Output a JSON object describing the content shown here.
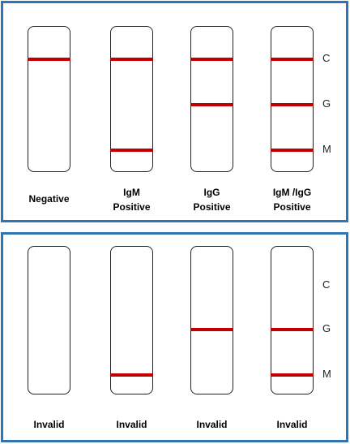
{
  "colors": {
    "border": "#2e75b6",
    "band": "#c00000"
  },
  "line_markers": [
    "C",
    "G",
    "M"
  ],
  "top_panel": {
    "strips": [
      {
        "caption_lines": [
          "Negative"
        ],
        "bands": [
          "C"
        ]
      },
      {
        "caption_lines": [
          "IgM",
          "Positive"
        ],
        "bands": [
          "C",
          "M"
        ]
      },
      {
        "caption_lines": [
          "IgG",
          "Positive"
        ],
        "bands": [
          "C",
          "G"
        ]
      },
      {
        "caption_lines": [
          "IgM /IgG",
          "Positive"
        ],
        "bands": [
          "C",
          "G",
          "M"
        ]
      }
    ]
  },
  "bottom_panel": {
    "strips": [
      {
        "caption_lines": [
          "Invalid"
        ],
        "bands": []
      },
      {
        "caption_lines": [
          "Invalid"
        ],
        "bands": [
          "M"
        ]
      },
      {
        "caption_lines": [
          "Invalid"
        ],
        "bands": [
          "G"
        ]
      },
      {
        "caption_lines": [
          "Invalid"
        ],
        "bands": [
          "G",
          "M"
        ]
      }
    ]
  }
}
